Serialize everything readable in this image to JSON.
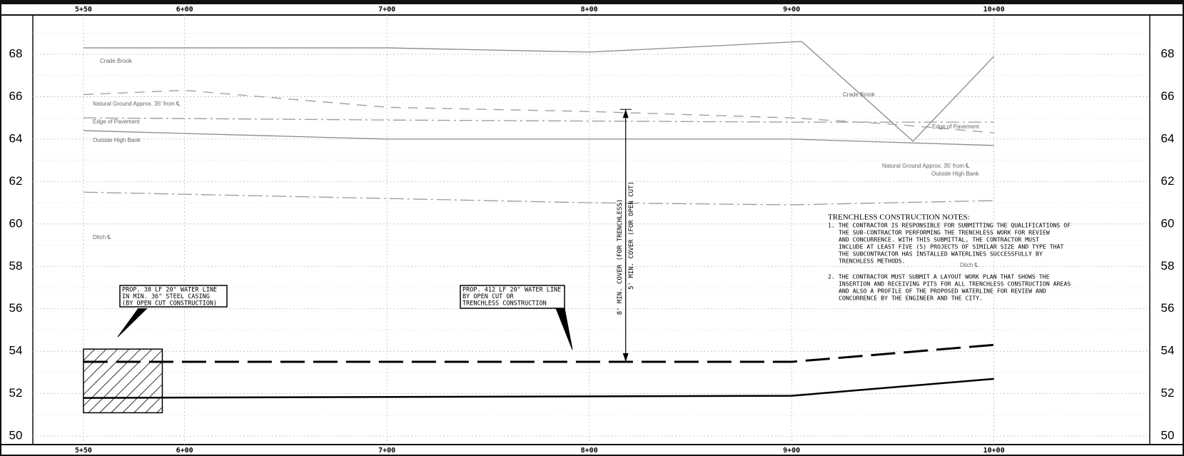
{
  "chart_data": {
    "type": "line",
    "xlim": [
      525,
      1077
    ],
    "ylim": [
      49.6,
      69.85
    ],
    "xticks": [
      {
        "value": 550,
        "label": "5+50"
      },
      {
        "value": 600,
        "label": "6+00"
      },
      {
        "value": 700,
        "label": "7+00"
      },
      {
        "value": 800,
        "label": "8+00"
      },
      {
        "value": 900,
        "label": "9+00"
      },
      {
        "value": 1000,
        "label": "10+00"
      }
    ],
    "yticks": [
      50,
      52,
      54,
      56,
      58,
      60,
      62,
      64,
      66,
      68
    ],
    "grid": true,
    "series": [
      {
        "name": "Crade Brook",
        "color": "#8a8a8a",
        "x": [
          550,
          700,
          800,
          905,
          960,
          1000
        ],
        "values": [
          68.3,
          68.3,
          68.1,
          68.6,
          63.9,
          67.9
        ]
      },
      {
        "name": "Natural Ground Approx. 35' from ℄",
        "color": "#9a9a9a",
        "dash": "14 10",
        "x": [
          550,
          600,
          700,
          800,
          900,
          950,
          1000
        ],
        "values": [
          66.1,
          66.3,
          65.5,
          65.3,
          65.0,
          64.7,
          64.3
        ]
      },
      {
        "name": "Edge of Pavement",
        "color": "#9a9a9a",
        "dash": "18 5 3 5",
        "x": [
          550,
          700,
          900,
          1000
        ],
        "values": [
          65.0,
          64.9,
          64.8,
          64.8
        ]
      },
      {
        "name": "Outside High Bank",
        "color": "#8a8a8a",
        "x": [
          550,
          700,
          900,
          1000
        ],
        "values": [
          64.4,
          64.0,
          64.0,
          63.7
        ]
      },
      {
        "name": "Ditch ℄",
        "color": "#9a9a9a",
        "dash": "20 5 3 5",
        "x": [
          550,
          800,
          900,
          1000
        ],
        "values": [
          61.5,
          61.0,
          60.9,
          61.1
        ]
      },
      {
        "color": "#000000",
        "dash": "34 12",
        "width": 3,
        "x": [
          550,
          900,
          1000
        ],
        "values": [
          53.5,
          53.5,
          54.3
        ]
      },
      {
        "color": "#000000",
        "width": 2.5,
        "x": [
          550,
          900,
          1000
        ],
        "values": [
          51.8,
          51.9,
          52.7
        ]
      }
    ],
    "callouts": [
      [
        "PROP. 38 LF 20\" WATER LINE",
        "IN MIN. 36\" STEEL CASING",
        "(BY OPEN CUT CONSTRUCTION)"
      ],
      [
        "PROP. 412 LF 20\" WATER LINE",
        "BY OPEN CUT OR",
        "TRENCHLESS CONSTRUCTION"
      ]
    ],
    "cover_labels": [
      "8' MIN. COVER (FOR TRENCHLESS)",
      "5' MIN. COVER (FOR OPEN CUT)"
    ],
    "notes": {
      "title": "TRENCHLESS CONSTRUCTION NOTES:",
      "lines": [
        "1.  THE CONTRACTOR IS RESPONSIBLE FOR SUBMITTING THE QUALIFICATIONS OF",
        "THE SUB-CONTRACTOR PERFORMING THE TRENCHLESS WORK FOR REVIEW",
        "AND CONCURRENCE.  WITH THIS SUBMITTAL, THE CONTRACTOR MUST",
        "INCLUDE AT LEAST FIVE (5) PROJECTS OF SIMILAR SIZE AND TYPE THAT",
        "THE SUBCONTRACTOR HAS INSTALLED WATERLINES SUCCESSFULLY BY",
        "TRENCHLESS METHODS.",
        "2.  THE CONTRACTOR MUST SUBMIT A LAYOUT WORK PLAN THAT SHOWS THE",
        "INSERTION AND RECEIVING PITS FOR ALL TRENCHLESS CONSTRUCTION AREAS",
        "AND ALSO A PROFILE OF THE PROPOSED WATERLINE FOR REVIEW AND",
        "CONCURRENCE BY THE ENGINEER AND THE CITY."
      ]
    }
  }
}
